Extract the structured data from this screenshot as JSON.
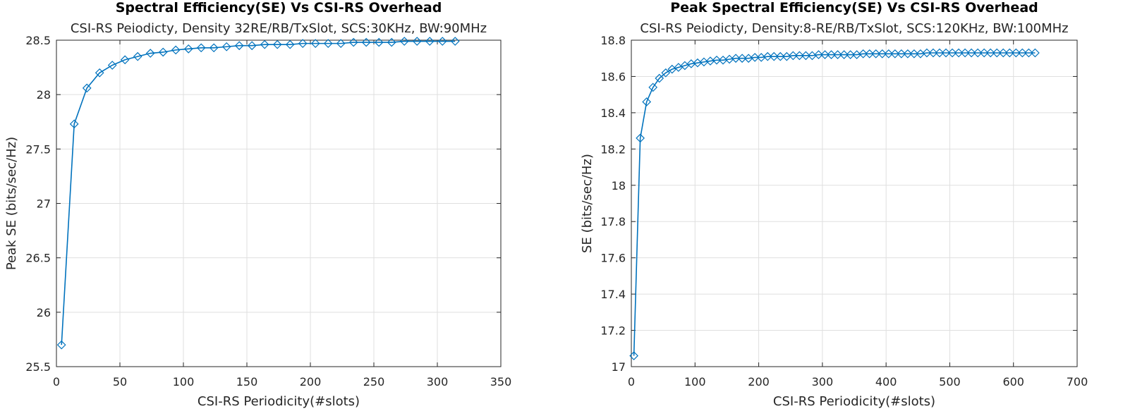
{
  "series_color": "#0072BD",
  "chart_data": [
    {
      "type": "line",
      "title": "Spectral Efficiency(SE) Vs CSI-RS Overhead",
      "subtitle": "CSI-RS Peiodicty, Density 32RE/RB/TxSlot, SCS:30KHz, BW:90MHz",
      "xlabel": "CSI-RS Periodicity(#slots)",
      "ylabel": "Peak SE (bits/sec/Hz)",
      "xlim": [
        0,
        350
      ],
      "ylim": [
        25.5,
        28.5
      ],
      "xticks": [
        0,
        50,
        100,
        150,
        200,
        250,
        300,
        350
      ],
      "yticks": [
        25.5,
        26,
        26.5,
        27,
        27.5,
        28,
        28.5
      ],
      "grid": true,
      "marker": "diamond",
      "series": [
        {
          "x": [
            4,
            14,
            24,
            34,
            44,
            54,
            64,
            74,
            84,
            94,
            104,
            114,
            124,
            134,
            144,
            154,
            164,
            174,
            184,
            194,
            204,
            214,
            224,
            234,
            244,
            254,
            264,
            274,
            284,
            294,
            304,
            314
          ],
          "y": [
            25.7,
            27.73,
            28.06,
            28.2,
            28.27,
            28.32,
            28.35,
            28.38,
            28.39,
            28.41,
            28.42,
            28.43,
            28.43,
            28.44,
            28.45,
            28.45,
            28.46,
            28.46,
            28.46,
            28.47,
            28.47,
            28.47,
            28.47,
            28.48,
            28.48,
            28.48,
            28.48,
            28.49,
            28.49,
            28.49,
            28.49,
            28.49
          ]
        }
      ]
    },
    {
      "type": "line",
      "title": "Peak Spectral Efficiency(SE) Vs CSI-RS Overhead",
      "subtitle": "CSI-RS Peiodicty, Density:8-RE/RB/TxSlot, SCS:120KHz, BW:100MHz",
      "xlabel": "CSI-RS Periodicity(#slots)",
      "ylabel": "SE (bits/sec/Hz)",
      "xlim": [
        0,
        700
      ],
      "ylim": [
        17,
        18.8
      ],
      "xticks": [
        0,
        100,
        200,
        300,
        400,
        500,
        600,
        700
      ],
      "yticks": [
        17,
        17.2,
        17.4,
        17.6,
        17.8,
        18,
        18.2,
        18.4,
        18.6,
        18.8
      ],
      "grid": true,
      "marker": "diamond",
      "series": [
        {
          "x": [
            4,
            14,
            24,
            34,
            44,
            54,
            64,
            74,
            84,
            94,
            104,
            114,
            124,
            134,
            144,
            154,
            164,
            174,
            184,
            194,
            204,
            214,
            224,
            234,
            244,
            254,
            264,
            274,
            284,
            294,
            304,
            314,
            324,
            334,
            344,
            354,
            364,
            374,
            384,
            394,
            404,
            414,
            424,
            434,
            444,
            454,
            464,
            474,
            484,
            494,
            504,
            514,
            524,
            534,
            544,
            554,
            564,
            574,
            584,
            594,
            604,
            614,
            624,
            634
          ],
          "y": [
            17.06,
            18.26,
            18.46,
            18.54,
            18.59,
            18.62,
            18.64,
            18.65,
            18.66,
            18.67,
            18.675,
            18.68,
            18.685,
            18.69,
            18.69,
            18.695,
            18.7,
            18.7,
            18.7,
            18.705,
            18.705,
            18.71,
            18.71,
            18.71,
            18.71,
            18.715,
            18.715,
            18.715,
            18.715,
            18.72,
            18.72,
            18.72,
            18.72,
            18.72,
            18.72,
            18.72,
            18.725,
            18.725,
            18.725,
            18.725,
            18.725,
            18.725,
            18.725,
            18.725,
            18.725,
            18.725,
            18.73,
            18.73,
            18.73,
            18.73,
            18.73,
            18.73,
            18.73,
            18.73,
            18.73,
            18.73,
            18.73,
            18.73,
            18.73,
            18.73,
            18.73,
            18.73,
            18.73,
            18.73
          ]
        }
      ]
    }
  ]
}
